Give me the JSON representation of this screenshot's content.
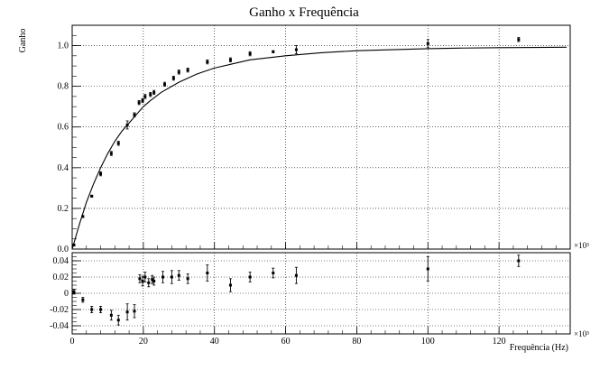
{
  "chart_data": [
    {
      "type": "scatter",
      "title": "Ganho x Frequência",
      "ylabel": "Ganho",
      "xlabel": "",
      "x_multiplier_label": "×10³",
      "xlim": [
        0,
        140
      ],
      "ylim": [
        0,
        1.1
      ],
      "grid": true,
      "x_ticks": [
        0,
        20,
        40,
        60,
        80,
        100,
        120
      ],
      "y_ticks": [
        0.0,
        0.2,
        0.4,
        0.6,
        0.8,
        1.0
      ],
      "y_tick_labels": [
        "0.0",
        "0.2",
        "0.4",
        "0.6",
        "0.8",
        "1.0"
      ],
      "series": [
        {
          "x": [
            0.5,
            3,
            5.5,
            8,
            11,
            13,
            15.5,
            17.5,
            18.8,
            19.8,
            20.5,
            22,
            23,
            26,
            28.5,
            30,
            32.5,
            38,
            44.5,
            50,
            56.5,
            63,
            100,
            125.5
          ],
          "y": [
            0.02,
            0.16,
            0.26,
            0.37,
            0.47,
            0.52,
            0.61,
            0.66,
            0.72,
            0.73,
            0.75,
            0.76,
            0.77,
            0.81,
            0.84,
            0.87,
            0.88,
            0.92,
            0.93,
            0.96,
            0.97,
            0.98,
            1.01,
            1.03
          ],
          "yerr": [
            0.005,
            0.005,
            0.005,
            0.01,
            0.01,
            0.01,
            0.02,
            0.01,
            0.01,
            0.01,
            0.01,
            0.01,
            0.01,
            0.01,
            0.01,
            0.01,
            0.01,
            0.01,
            0.01,
            0.01,
            0.005,
            0.02,
            0.02,
            0.01
          ]
        },
        {
          "type": "line",
          "fit_curve": {
            "x": [
              0,
              2,
              4,
              6,
              8,
              10,
              12,
              14,
              16,
              18,
              20,
              22,
              25,
              30,
              35,
              40,
              45,
              50,
              60,
              70,
              80,
              90,
              100,
              110,
              120,
              130,
              139
            ],
            "y": [
              0.0,
              0.12,
              0.23,
              0.32,
              0.4,
              0.47,
              0.53,
              0.58,
              0.62,
              0.66,
              0.7,
              0.73,
              0.77,
              0.82,
              0.86,
              0.89,
              0.91,
              0.93,
              0.95,
              0.965,
              0.975,
              0.98,
              0.985,
              0.988,
              0.99,
              0.991,
              0.992
            ]
          }
        }
      ]
    },
    {
      "type": "scatter",
      "title": "",
      "xlabel": "Frequência (Hz)",
      "x_multiplier_label": "×10³",
      "ylabel": "",
      "xlim": [
        0,
        140
      ],
      "ylim": [
        -0.05,
        0.05
      ],
      "grid": true,
      "x_ticks": [
        0,
        20,
        40,
        60,
        80,
        100,
        120
      ],
      "x_tick_labels": [
        "0",
        "20",
        "40",
        "60",
        "80",
        "100",
        "120"
      ],
      "y_ticks": [
        -0.04,
        -0.02,
        0,
        0.02,
        0.04
      ],
      "y_tick_labels": [
        "-0.04",
        "-0.02",
        "0",
        "0.02",
        "0.04"
      ],
      "series": [
        {
          "x": [
            0.5,
            3,
            5.5,
            8,
            11,
            13,
            15.5,
            17.5,
            19,
            19.8,
            20.5,
            21.5,
            22.5,
            23,
            25.5,
            28,
            30,
            32.5,
            38,
            44.5,
            50,
            56.5,
            63,
            100,
            125.5
          ],
          "y": [
            0.002,
            -0.008,
            -0.02,
            -0.02,
            -0.027,
            -0.033,
            -0.023,
            -0.022,
            0.018,
            0.015,
            0.02,
            0.013,
            0.017,
            0.015,
            0.02,
            0.02,
            0.022,
            0.018,
            0.025,
            0.01,
            0.02,
            0.025,
            0.022,
            0.03,
            0.04
          ],
          "yerr": [
            0.003,
            0.003,
            0.004,
            0.004,
            0.006,
            0.006,
            0.01,
            0.008,
            0.005,
            0.006,
            0.006,
            0.005,
            0.005,
            0.005,
            0.007,
            0.008,
            0.006,
            0.006,
            0.01,
            0.008,
            0.006,
            0.006,
            0.01,
            0.015,
            0.007
          ]
        }
      ]
    }
  ]
}
